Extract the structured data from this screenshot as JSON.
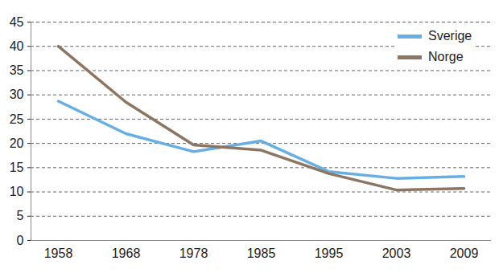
{
  "chart_data": {
    "type": "line",
    "categories": [
      "1958",
      "1968",
      "1978",
      "1985",
      "1995",
      "2003",
      "2009"
    ],
    "series": [
      {
        "name": "Sverige",
        "color": "#66aee4",
        "values": [
          28.7,
          22,
          18.3,
          20.5,
          14.2,
          12.8,
          13.2
        ]
      },
      {
        "name": "Norge",
        "color": "#8c7561",
        "values": [
          40,
          28.5,
          19.7,
          18.6,
          13.8,
          10.4,
          10.7
        ]
      }
    ],
    "ylim": [
      0,
      45
    ],
    "yticks": [
      0,
      5,
      10,
      15,
      20,
      25,
      30,
      35,
      40,
      45
    ],
    "grid": true,
    "legend": "top-right"
  }
}
